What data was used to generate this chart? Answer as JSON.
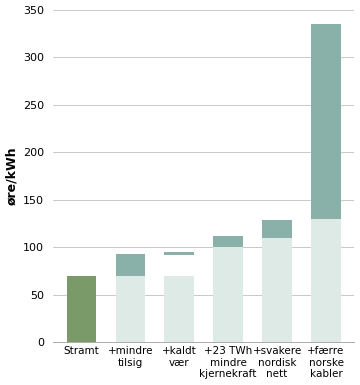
{
  "categories": [
    "Stramt",
    "+mindre\ntilsig",
    "+kaldt\nvær",
    "+23 TWh\nmindre\nkjernekraft",
    "+svakere\nnordisk\nnett",
    "+færre\nnorske\nkabler"
  ],
  "light_full_heights": [
    0,
    70,
    70,
    100,
    110,
    130
  ],
  "dark_bottoms": [
    0,
    70,
    92,
    100,
    110,
    130
  ],
  "dark_tops": [
    70,
    93,
    95,
    112,
    128,
    335
  ],
  "bar1_color": "#7a9a6a",
  "light_color": "#ddeae6",
  "dark_color": "#8ab0aa",
  "ylabel": "øre/kWh",
  "ylim": [
    0,
    350
  ],
  "yticks": [
    0,
    50,
    100,
    150,
    200,
    250,
    300,
    350
  ],
  "background_color": "#ffffff",
  "grid_color": "#c0c0c0",
  "bar_width": 0.6,
  "tick_fontsize": 8,
  "label_fontsize": 7.5,
  "ylabel_fontsize": 9
}
